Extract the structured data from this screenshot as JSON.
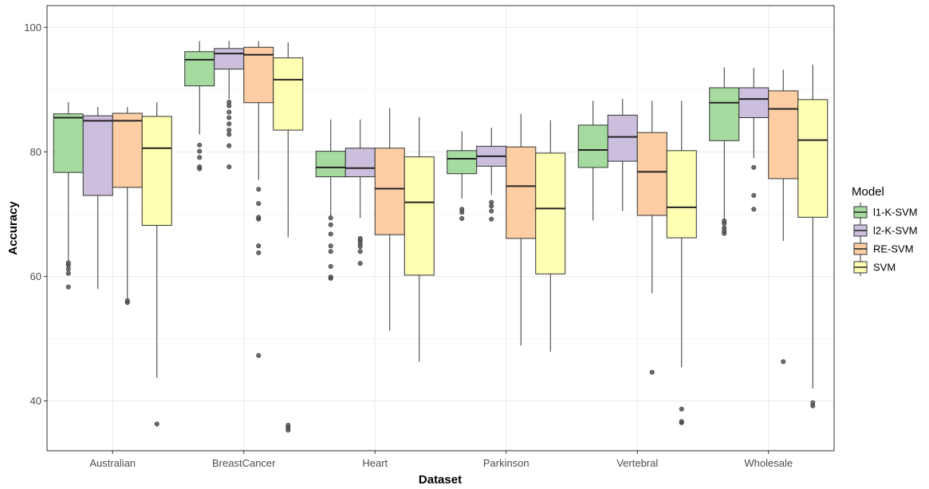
{
  "chart_data": {
    "type": "boxplot",
    "xlabel": "Dataset",
    "ylabel": "Accuracy",
    "ylim": [
      32,
      103.5
    ],
    "yticks": [
      40,
      60,
      80,
      100
    ],
    "grid": true,
    "legend": {
      "title": "Model",
      "placement": "right"
    },
    "categories": [
      "Australian",
      "BreastCancer",
      "Heart",
      "Parkinson",
      "Vertebral",
      "Wholesale"
    ],
    "series": [
      {
        "name": "l1-K-SVM",
        "color": "#a6dba0",
        "boxes": [
          {
            "lower_whisker": 62.5,
            "q1": 76.7,
            "median": 85.5,
            "q3": 86.1,
            "upper_whisker": 88.0,
            "outliers": [
              58.3,
              60.5,
              61.2,
              61.8,
              62.2
            ]
          },
          {
            "lower_whisker": 82.8,
            "q1": 90.6,
            "median": 94.8,
            "q3": 96.1,
            "upper_whisker": 97.8,
            "outliers": [
              77.3,
              77.6,
              79.1,
              80.1,
              81.1
            ]
          },
          {
            "lower_whisker": 69.7,
            "q1": 76.0,
            "median": 77.5,
            "q3": 80.1,
            "upper_whisker": 85.2,
            "outliers": [
              59.7,
              59.9,
              61.6,
              64.0,
              64.9,
              66.8,
              68.3,
              69.4
            ]
          },
          {
            "lower_whisker": 72.5,
            "q1": 76.5,
            "median": 78.9,
            "q3": 80.2,
            "upper_whisker": 83.3,
            "outliers": [
              69.3,
              70.3,
              70.8
            ]
          },
          {
            "lower_whisker": 69.0,
            "q1": 77.5,
            "median": 80.3,
            "q3": 84.3,
            "upper_whisker": 88.2,
            "outliers": []
          },
          {
            "lower_whisker": 69.0,
            "q1": 81.8,
            "median": 87.9,
            "q3": 90.3,
            "upper_whisker": 93.6,
            "outliers": [
              66.9,
              67.3,
              67.8,
              68.5,
              68.9
            ]
          }
        ]
      },
      {
        "name": "l2-K-SVM",
        "color": "#cbbfdd",
        "boxes": [
          {
            "lower_whisker": 58.0,
            "q1": 73.0,
            "median": 85.0,
            "q3": 85.8,
            "upper_whisker": 87.2,
            "outliers": []
          },
          {
            "lower_whisker": 88.5,
            "q1": 93.3,
            "median": 95.8,
            "q3": 96.6,
            "upper_whisker": 97.8,
            "outliers": [
              77.6,
              81.0,
              82.8,
              83.5,
              84.5,
              85.5,
              86.4,
              87.4,
              88.0
            ]
          },
          {
            "lower_whisker": 69.4,
            "q1": 76.0,
            "median": 77.4,
            "q3": 80.6,
            "upper_whisker": 85.2,
            "outliers": [
              62.1,
              64.0,
              64.8,
              65.3,
              65.8,
              66.1
            ]
          },
          {
            "lower_whisker": 73.1,
            "q1": 77.7,
            "median": 79.3,
            "q3": 80.9,
            "upper_whisker": 83.9,
            "outliers": [
              69.2,
              70.5,
              71.3,
              71.9
            ]
          },
          {
            "lower_whisker": 70.5,
            "q1": 78.5,
            "median": 82.4,
            "q3": 85.9,
            "upper_whisker": 88.5,
            "outliers": []
          },
          {
            "lower_whisker": 79.0,
            "q1": 85.5,
            "median": 88.5,
            "q3": 90.3,
            "upper_whisker": 93.5,
            "outliers": [
              70.8,
              73.0,
              77.5
            ]
          }
        ]
      },
      {
        "name": "RE-SVM",
        "color": "#fdcea3",
        "boxes": [
          {
            "lower_whisker": 56.5,
            "q1": 74.3,
            "median": 85.0,
            "q3": 86.2,
            "upper_whisker": 87.2,
            "outliers": [
              55.8,
              56.1
            ]
          },
          {
            "lower_whisker": 75.5,
            "q1": 87.9,
            "median": 95.6,
            "q3": 96.8,
            "upper_whisker": 97.8,
            "outliers": [
              47.3,
              63.8,
              64.9,
              69.2,
              69.5,
              71.7,
              74.0
            ]
          },
          {
            "lower_whisker": 51.3,
            "q1": 66.7,
            "median": 74.1,
            "q3": 80.6,
            "upper_whisker": 87.0,
            "outliers": []
          },
          {
            "lower_whisker": 48.9,
            "q1": 66.1,
            "median": 74.5,
            "q3": 80.8,
            "upper_whisker": 86.1,
            "outliers": []
          },
          {
            "lower_whisker": 57.3,
            "q1": 69.8,
            "median": 76.8,
            "q3": 83.1,
            "upper_whisker": 88.2,
            "outliers": [
              44.6
            ]
          },
          {
            "lower_whisker": 65.7,
            "q1": 75.7,
            "median": 86.9,
            "q3": 89.8,
            "upper_whisker": 93.2,
            "outliers": [
              46.3
            ]
          }
        ]
      },
      {
        "name": "SVM",
        "color": "#ffffb3",
        "boxes": [
          {
            "lower_whisker": 43.7,
            "q1": 68.2,
            "median": 80.6,
            "q3": 85.7,
            "upper_whisker": 88.0,
            "outliers": [
              36.3
            ]
          },
          {
            "lower_whisker": 66.3,
            "q1": 83.5,
            "median": 91.6,
            "q3": 95.1,
            "upper_whisker": 97.6,
            "outliers": [
              35.3,
              35.7,
              36.1
            ]
          },
          {
            "lower_whisker": 46.3,
            "q1": 60.2,
            "median": 71.9,
            "q3": 79.2,
            "upper_whisker": 85.6,
            "outliers": []
          },
          {
            "lower_whisker": 47.9,
            "q1": 60.4,
            "median": 70.9,
            "q3": 79.8,
            "upper_whisker": 85.1,
            "outliers": []
          },
          {
            "lower_whisker": 45.4,
            "q1": 66.2,
            "median": 71.1,
            "q3": 80.2,
            "upper_whisker": 88.2,
            "outliers": [
              36.5,
              36.7,
              38.7
            ]
          },
          {
            "lower_whisker": 42.0,
            "q1": 69.5,
            "median": 81.9,
            "q3": 88.4,
            "upper_whisker": 94.0,
            "outliers": [
              39.2,
              39.7
            ]
          }
        ]
      }
    ]
  }
}
